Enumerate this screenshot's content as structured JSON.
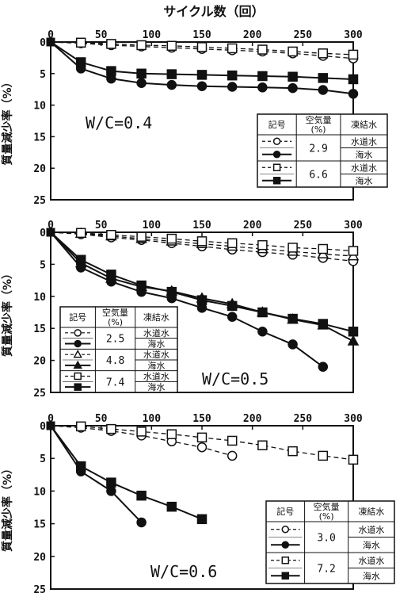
{
  "figure": {
    "x_title": "サイクル数（回）",
    "y_label": "質量減少率（%）"
  },
  "legend_headers": {
    "symbol": "記号",
    "air_line1": "空気量",
    "air_line2": "(%)",
    "water": "凍結水"
  },
  "chart_data": [
    {
      "type": "line",
      "annotation": "W/C=0.4",
      "xlim": [
        0,
        300
      ],
      "ylim": [
        0,
        25
      ],
      "x_ticks": [
        "0",
        "50",
        "100",
        "150",
        "200",
        "250",
        "300"
      ],
      "y_ticks": [
        "0",
        "5",
        "10",
        "15",
        "20",
        "25"
      ],
      "legend_position": "right",
      "series": [
        {
          "marker": "open-circle",
          "dash": true,
          "air": "2.9",
          "water": "水道水",
          "x": [
            0,
            30,
            60,
            90,
            120,
            150,
            180,
            210,
            240,
            270,
            300
          ],
          "y": [
            0,
            0.2,
            0.5,
            0.7,
            0.9,
            1.1,
            1.3,
            1.5,
            1.8,
            2.2,
            2.6
          ]
        },
        {
          "marker": "filled-circle",
          "dash": false,
          "air": "",
          "water": "海水",
          "x": [
            0,
            30,
            60,
            90,
            120,
            150,
            180,
            210,
            240,
            270,
            300
          ],
          "y": [
            0,
            4.2,
            5.8,
            6.5,
            6.8,
            7.0,
            7.1,
            7.2,
            7.3,
            7.6,
            8.2
          ]
        },
        {
          "marker": "open-square",
          "dash": true,
          "air": "6.6",
          "water": "水道水",
          "x": [
            0,
            30,
            60,
            90,
            120,
            150,
            180,
            210,
            240,
            270,
            300
          ],
          "y": [
            0,
            0.1,
            0.3,
            0.5,
            0.6,
            0.8,
            1.0,
            1.2,
            1.5,
            1.8,
            2.0
          ]
        },
        {
          "marker": "filled-square",
          "dash": false,
          "air": "",
          "water": "海水",
          "x": [
            0,
            30,
            60,
            90,
            120,
            150,
            180,
            210,
            240,
            270,
            300
          ],
          "y": [
            0,
            3.2,
            4.6,
            5.0,
            5.1,
            5.2,
            5.3,
            5.4,
            5.5,
            5.7,
            5.9
          ]
        }
      ]
    },
    {
      "type": "line",
      "annotation": "W/C=0.5",
      "xlim": [
        0,
        300
      ],
      "ylim": [
        0,
        25
      ],
      "x_ticks": [
        "0",
        "50",
        "100",
        "150",
        "200",
        "250",
        "300"
      ],
      "y_ticks": [
        "0",
        "5",
        "10",
        "15",
        "20",
        "25"
      ],
      "legend_position": "bottom-left",
      "series": [
        {
          "marker": "open-circle",
          "dash": true,
          "air": "2.5",
          "water": "水道水",
          "x": [
            0,
            30,
            60,
            90,
            120,
            150,
            180,
            210,
            240,
            270,
            300
          ],
          "y": [
            0,
            0.3,
            0.8,
            1.2,
            1.7,
            2.2,
            2.7,
            3.1,
            3.5,
            4.0,
            4.5
          ]
        },
        {
          "marker": "filled-circle",
          "dash": false,
          "air": "",
          "water": "海水",
          "x": [
            0,
            30,
            60,
            90,
            120,
            150,
            180,
            210,
            240,
            270
          ],
          "y": [
            0,
            5.5,
            7.7,
            9.3,
            10.3,
            11.8,
            13.2,
            15.5,
            17.5,
            21.0
          ]
        },
        {
          "marker": "open-triangle",
          "dash": true,
          "air": "4.8",
          "water": "水道水",
          "x": [
            0,
            30,
            60,
            90,
            120,
            150,
            180,
            210,
            240,
            270,
            300
          ],
          "y": [
            0,
            0.2,
            0.6,
            1.0,
            1.4,
            1.8,
            2.2,
            2.6,
            3.0,
            3.4,
            3.7
          ]
        },
        {
          "marker": "filled-triangle",
          "dash": false,
          "air": "",
          "water": "海水",
          "x": [
            0,
            30,
            60,
            90,
            120,
            150,
            180,
            210,
            240,
            270,
            300
          ],
          "y": [
            0,
            4.8,
            7.2,
            8.5,
            9.2,
            10.3,
            11.2,
            12.5,
            13.6,
            14.5,
            17.0
          ]
        },
        {
          "marker": "open-square",
          "dash": true,
          "air": "7.4",
          "water": "水道水",
          "x": [
            0,
            30,
            60,
            90,
            120,
            150,
            180,
            210,
            240,
            270,
            300
          ],
          "y": [
            0,
            0.1,
            0.4,
            0.7,
            1.0,
            1.4,
            1.7,
            2.0,
            2.4,
            2.6,
            2.9
          ]
        },
        {
          "marker": "filled-square",
          "dash": false,
          "air": "",
          "water": "海水",
          "x": [
            0,
            30,
            60,
            90,
            120,
            150,
            180,
            210,
            240,
            270,
            300
          ],
          "y": [
            0,
            4.3,
            6.6,
            8.3,
            9.3,
            10.6,
            11.5,
            12.5,
            13.5,
            14.3,
            15.5
          ]
        }
      ]
    },
    {
      "type": "line",
      "annotation": "W/C=0.6",
      "xlim": [
        0,
        300
      ],
      "ylim": [
        0,
        25
      ],
      "x_ticks": [
        "0",
        "50",
        "100",
        "150",
        "200",
        "250",
        "300"
      ],
      "y_ticks": [
        "0",
        "5",
        "10",
        "15",
        "20",
        "25"
      ],
      "legend_position": "bottom-right",
      "series": [
        {
          "marker": "open-circle",
          "dash": true,
          "air": "3.0",
          "water": "水道水",
          "x": [
            0,
            30,
            60,
            90,
            120,
            150,
            180
          ],
          "y": [
            0,
            0.3,
            0.8,
            1.5,
            2.4,
            3.3,
            4.6
          ]
        },
        {
          "marker": "filled-circle",
          "dash": false,
          "air": "",
          "water": "海水",
          "x": [
            0,
            30,
            60,
            90
          ],
          "y": [
            0,
            7.0,
            10.0,
            14.8
          ]
        },
        {
          "marker": "open-square",
          "dash": true,
          "air": "7.2",
          "water": "水道水",
          "x": [
            0,
            30,
            60,
            90,
            120,
            150,
            180,
            210,
            240,
            270,
            300
          ],
          "y": [
            0,
            0.1,
            0.5,
            0.9,
            1.3,
            1.8,
            2.3,
            3.0,
            3.9,
            4.6,
            5.2
          ]
        },
        {
          "marker": "filled-square",
          "dash": false,
          "air": "",
          "water": "海水",
          "x": [
            0,
            30,
            60,
            90,
            120,
            150
          ],
          "y": [
            0,
            6.2,
            8.7,
            10.7,
            12.4,
            14.3
          ]
        }
      ]
    }
  ]
}
